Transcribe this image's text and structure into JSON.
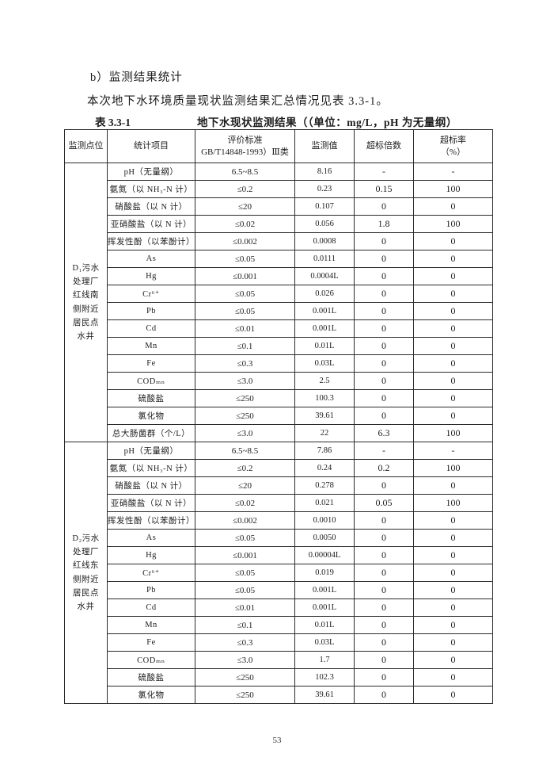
{
  "page": {
    "heading": "b）监测结果统计",
    "intro": "本次地下水环境质量现状监测结果汇总情况见表 3.3-1。",
    "page_number": "53"
  },
  "table": {
    "label": "表 3.3-1",
    "title": "地下水现状监测结果（（单位：mg/L，pH 为无量纲）",
    "columns": [
      {
        "label": "监测点位"
      },
      {
        "label": "统计项目"
      },
      {
        "label": "评价标准",
        "label2": "GB/T14848-1993）Ⅲ类"
      },
      {
        "label": "监测值"
      },
      {
        "label": "超标倍数"
      },
      {
        "label": "超标率",
        "label2": "（%）"
      }
    ],
    "sections": [
      {
        "point": "D₁污水处理厂红线南侧附近居民点水井",
        "rows": [
          [
            "pH（无量纲）",
            "6.5~8.5",
            "8.16",
            "-",
            "-"
          ],
          [
            "氨氮（以 NH₃-N 计）",
            "≤0.2",
            "0.23",
            "0.15",
            "100"
          ],
          [
            "硝酸盐（以 N 计）",
            "≤20",
            "0.107",
            "0",
            "0"
          ],
          [
            "亚硝酸盐（以 N 计）",
            "≤0.02",
            "0.056",
            "1.8",
            "100"
          ],
          [
            "挥发性酚（以苯酚计）",
            "≤0.002",
            "0.0008",
            "0",
            "0"
          ],
          [
            "As",
            "≤0.05",
            "0.0111",
            "0",
            "0"
          ],
          [
            "Hg",
            "≤0.001",
            "0.0004L",
            "0",
            "0"
          ],
          [
            "Cr⁶⁺",
            "≤0.05",
            "0.026",
            "0",
            "0"
          ],
          [
            "Pb",
            "≤0.05",
            "0.001L",
            "0",
            "0"
          ],
          [
            "Cd",
            "≤0.01",
            "0.001L",
            "0",
            "0"
          ],
          [
            "Mn",
            "≤0.1",
            "0.01L",
            "0",
            "0"
          ],
          [
            "Fe",
            "≤0.3",
            "0.03L",
            "0",
            "0"
          ],
          [
            "CODₘₙ",
            "≤3.0",
            "2.5",
            "0",
            "0"
          ],
          [
            "硫酸盐",
            "≤250",
            "100.3",
            "0",
            "0"
          ],
          [
            "氯化物",
            "≤250",
            "39.61",
            "0",
            "0"
          ],
          [
            "总大肠菌群（个/L）",
            "≤3.0",
            "22",
            "6.3",
            "100"
          ]
        ]
      },
      {
        "point": "D₂污水处理厂红线东侧附近居民点水井",
        "rows": [
          [
            "pH（无量纲）",
            "6.5~8.5",
            "7.86",
            "-",
            "-"
          ],
          [
            "氨氮（以 NH₃-N 计）",
            "≤0.2",
            "0.24",
            "0.2",
            "100"
          ],
          [
            "硝酸盐（以 N 计）",
            "≤20",
            "0.278",
            "0",
            "0"
          ],
          [
            "亚硝酸盐（以 N 计）",
            "≤0.02",
            "0.021",
            "0.05",
            "100"
          ],
          [
            "挥发性酚（以苯酚计）",
            "≤0.002",
            "0.0010",
            "0",
            "0"
          ],
          [
            "As",
            "≤0.05",
            "0.0050",
            "0",
            "0"
          ],
          [
            "Hg",
            "≤0.001",
            "0.00004L",
            "0",
            "0"
          ],
          [
            "Cr⁶⁺",
            "≤0.05",
            "0.019",
            "0",
            "0"
          ],
          [
            "Pb",
            "≤0.05",
            "0.001L",
            "0",
            "0"
          ],
          [
            "Cd",
            "≤0.01",
            "0.001L",
            "0",
            "0"
          ],
          [
            "Mn",
            "≤0.1",
            "0.01L",
            "0",
            "0"
          ],
          [
            "Fe",
            "≤0.3",
            "0.03L",
            "0",
            "0"
          ],
          [
            "CODₘₙ",
            "≤3.0",
            "1.7",
            "0",
            "0"
          ],
          [
            "硫酸盐",
            "≤250",
            "102.3",
            "0",
            "0"
          ],
          [
            "氯化物",
            "≤250",
            "39.61",
            "0",
            "0"
          ]
        ]
      }
    ]
  }
}
